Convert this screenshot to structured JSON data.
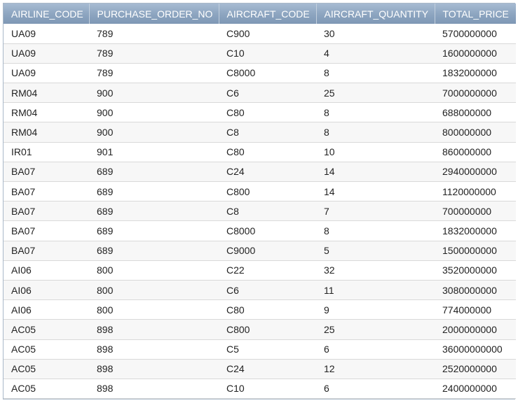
{
  "table": {
    "columns": [
      "AIRLINE_CODE",
      "PURCHASE_ORDER_NO",
      "AIRCRAFT_CODE",
      "AIRCRAFT_QUANTITY",
      "TOTAL_PRICE"
    ],
    "rows": [
      [
        "UA09",
        "789",
        "C900",
        "30",
        "5700000000"
      ],
      [
        "UA09",
        "789",
        "C10",
        "4",
        "1600000000"
      ],
      [
        "UA09",
        "789",
        "C8000",
        "8",
        "1832000000"
      ],
      [
        "RM04",
        "900",
        "C6",
        "25",
        "7000000000"
      ],
      [
        "RM04",
        "900",
        "C80",
        "8",
        "688000000"
      ],
      [
        "RM04",
        "900",
        "C8",
        "8",
        "800000000"
      ],
      [
        "IR01",
        "901",
        "C80",
        "10",
        "860000000"
      ],
      [
        "BA07",
        "689",
        "C24",
        "14",
        "2940000000"
      ],
      [
        "BA07",
        "689",
        "C800",
        "14",
        "1120000000"
      ],
      [
        "BA07",
        "689",
        "C8",
        "7",
        "700000000"
      ],
      [
        "BA07",
        "689",
        "C8000",
        "8",
        "1832000000"
      ],
      [
        "BA07",
        "689",
        "C9000",
        "5",
        "1500000000"
      ],
      [
        "AI06",
        "800",
        "C22",
        "32",
        "3520000000"
      ],
      [
        "AI06",
        "800",
        "C6",
        "11",
        "3080000000"
      ],
      [
        "AI06",
        "800",
        "C80",
        "9",
        "774000000"
      ],
      [
        "AC05",
        "898",
        "C800",
        "25",
        "2000000000"
      ],
      [
        "AC05",
        "898",
        "C5",
        "6",
        "36000000000"
      ],
      [
        "AC05",
        "898",
        "C24",
        "12",
        "2520000000"
      ],
      [
        "AC05",
        "898",
        "C10",
        "6",
        "2400000000"
      ]
    ]
  },
  "colors": {
    "header_bg": "#8ea6c1",
    "header_text": "#ffffff",
    "row_alt": "#f7f7f7",
    "border": "#a9b8c8"
  }
}
